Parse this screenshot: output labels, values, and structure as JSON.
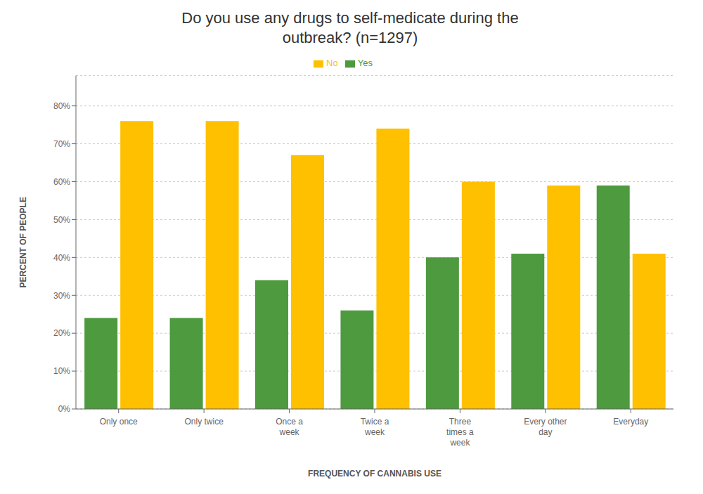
{
  "chart_data": {
    "type": "bar",
    "title": "Do you use any drugs to self-medicate during the\noutbreak? (n=1297)",
    "xlabel": "FREQUENCY OF CANNABIS USE",
    "ylabel": "PERCENT OF PEOPLE",
    "categories": [
      "Only once",
      "Only twice",
      "Once a\nweek",
      "Twice a\nweek",
      "Three\ntimes a\nweek",
      "Every other\nday",
      "Everyday"
    ],
    "series": [
      {
        "name": "Yes",
        "color": "#4e9a3e",
        "values": [
          0.24,
          0.24,
          0.34,
          0.26,
          0.4,
          0.41,
          0.59
        ]
      },
      {
        "name": "No",
        "color": "#ffc000",
        "values": [
          0.76,
          0.76,
          0.67,
          0.74,
          0.6,
          0.59,
          0.41
        ]
      }
    ],
    "ylim": [
      0,
      0.88
    ],
    "yticks": [
      {
        "value": 0.0,
        "label": "0%"
      },
      {
        "value": 0.1,
        "label": "10%"
      },
      {
        "value": 0.2,
        "label": "20%"
      },
      {
        "value": 0.3,
        "label": "30%"
      },
      {
        "value": 0.4,
        "label": "40%"
      },
      {
        "value": 0.5,
        "label": "50%"
      },
      {
        "value": 0.6,
        "label": "60%"
      },
      {
        "value": 0.7,
        "label": "70%"
      },
      {
        "value": 0.8,
        "label": "80%"
      }
    ],
    "grid": true,
    "legend": "top"
  }
}
